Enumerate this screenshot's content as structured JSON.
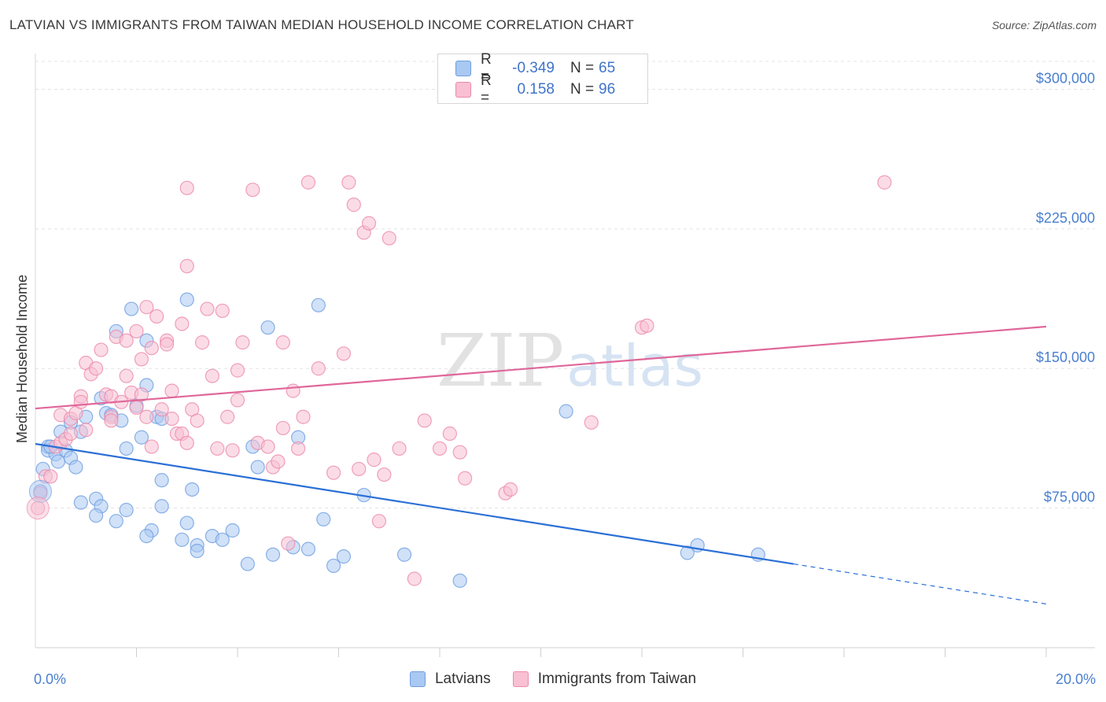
{
  "title": "LATVIAN VS IMMIGRANTS FROM TAIWAN MEDIAN HOUSEHOLD INCOME CORRELATION CHART",
  "source": "Source: ZipAtlas.com",
  "watermark": {
    "zip": "ZIP",
    "atlas": "atlas"
  },
  "legend": {
    "rows": [
      {
        "r_label": "R =",
        "r_value": "-0.349",
        "n_label": "N =",
        "n_value": "65",
        "color": "#a9c8f2",
        "stroke": "#6f9fe0"
      },
      {
        "r_label": "R =",
        "r_value": "0.158",
        "n_label": "N =",
        "n_value": "96",
        "color": "#f8c0d2",
        "stroke": "#ec8aab"
      }
    ]
  },
  "bottom_legend": {
    "items": [
      {
        "label": "Latvians",
        "color": "#a9c8f2",
        "stroke": "#6f9fe0"
      },
      {
        "label": "Immigrants from Taiwan",
        "color": "#f8c0d2",
        "stroke": "#ec8aab"
      }
    ]
  },
  "chart_data": {
    "type": "scatter",
    "title": "LATVIAN VS IMMIGRANTS FROM TAIWAN MEDIAN HOUSEHOLD INCOME CORRELATION CHART",
    "xlabel": "",
    "ylabel": "Median Household Income",
    "xlim": [
      0,
      20
    ],
    "ylim": [
      0,
      315000
    ],
    "x_tick_labels": [
      "0.0%",
      "20.0%"
    ],
    "y_ticks": [
      75000,
      150000,
      225000,
      300000
    ],
    "y_tick_labels": [
      "$75,000",
      "$150,000",
      "$225,000",
      "$300,000"
    ],
    "grid": "horizontal dashed",
    "series": [
      {
        "name": "Latvians",
        "color": "#6f9fe0",
        "fill": "#a9c8f2",
        "line_color": "#2b6fd6",
        "trend": {
          "x0": 0.0,
          "y0": 109500,
          "x1": 15.0,
          "y1": 45000,
          "dashed_to_x": 20.0,
          "dashed_to_y": 23500
        },
        "points": [
          [
            0.25,
            108000
          ],
          [
            0.25,
            106000
          ],
          [
            0.4,
            104000
          ],
          [
            0.45,
            100000
          ],
          [
            0.5,
            116000
          ],
          [
            0.6,
            106000
          ],
          [
            0.7,
            102000
          ],
          [
            0.8,
            97000
          ],
          [
            0.9,
            116000
          ],
          [
            0.7,
            121000
          ],
          [
            1.0,
            124000
          ],
          [
            1.3,
            134000
          ],
          [
            1.4,
            126000
          ],
          [
            1.5,
            125000
          ],
          [
            1.7,
            122000
          ],
          [
            1.6,
            170000
          ],
          [
            1.9,
            182000
          ],
          [
            2.2,
            165000
          ],
          [
            2.0,
            130000
          ],
          [
            2.1,
            113000
          ],
          [
            2.2,
            141000
          ],
          [
            1.8,
            107000
          ],
          [
            2.4,
            124000
          ],
          [
            2.5,
            123000
          ],
          [
            2.5,
            90000
          ],
          [
            3.0,
            187000
          ],
          [
            3.1,
            85000
          ],
          [
            1.2,
            80000
          ],
          [
            0.9,
            78000
          ],
          [
            1.3,
            76000
          ],
          [
            1.2,
            71000
          ],
          [
            1.6,
            68000
          ],
          [
            1.8,
            74000
          ],
          [
            2.3,
            63000
          ],
          [
            2.2,
            60000
          ],
          [
            2.5,
            76000
          ],
          [
            3.0,
            67000
          ],
          [
            2.9,
            58000
          ],
          [
            3.2,
            55000
          ],
          [
            3.2,
            52000
          ],
          [
            3.5,
            60000
          ],
          [
            3.7,
            58000
          ],
          [
            3.9,
            63000
          ],
          [
            4.2,
            45000
          ],
          [
            4.3,
            108000
          ],
          [
            4.4,
            97000
          ],
          [
            4.6,
            172000
          ],
          [
            4.7,
            50000
          ],
          [
            5.1,
            54000
          ],
          [
            5.2,
            113000
          ],
          [
            5.4,
            53000
          ],
          [
            5.6,
            184000
          ],
          [
            5.7,
            69000
          ],
          [
            5.9,
            44000
          ],
          [
            6.1,
            49000
          ],
          [
            6.5,
            82000
          ],
          [
            7.3,
            50000
          ],
          [
            8.4,
            36000
          ],
          [
            10.5,
            127000
          ],
          [
            12.9,
            51000
          ],
          [
            13.1,
            55000
          ],
          [
            14.3,
            50000
          ],
          [
            0.1,
            84000
          ],
          [
            0.15,
            96000
          ],
          [
            0.3,
            108000
          ]
        ]
      },
      {
        "name": "Immigrants from Taiwan",
        "color": "#ec8aab",
        "fill": "#f8c0d2",
        "line_color": "#e0679a",
        "trend": {
          "x0": 0.0,
          "y0": 128500,
          "x1": 20.0,
          "y1": 172500
        },
        "points": [
          [
            0.05,
            75000
          ],
          [
            0.1,
            83000
          ],
          [
            0.2,
            92000
          ],
          [
            0.3,
            92000
          ],
          [
            0.4,
            108000
          ],
          [
            0.5,
            110000
          ],
          [
            0.5,
            125000
          ],
          [
            0.6,
            112000
          ],
          [
            0.7,
            115000
          ],
          [
            0.7,
            123000
          ],
          [
            0.8,
            126000
          ],
          [
            0.9,
            135000
          ],
          [
            0.9,
            132000
          ],
          [
            1.0,
            153000
          ],
          [
            1.0,
            117000
          ],
          [
            1.1,
            147000
          ],
          [
            1.2,
            150000
          ],
          [
            1.3,
            160000
          ],
          [
            1.4,
            136000
          ],
          [
            1.5,
            124000
          ],
          [
            1.5,
            122000
          ],
          [
            1.5,
            135000
          ],
          [
            1.6,
            167000
          ],
          [
            1.7,
            132000
          ],
          [
            1.8,
            165000
          ],
          [
            1.8,
            146000
          ],
          [
            1.9,
            137000
          ],
          [
            2.0,
            170000
          ],
          [
            2.0,
            129000
          ],
          [
            2.1,
            155000
          ],
          [
            2.1,
            136000
          ],
          [
            2.2,
            124000
          ],
          [
            2.2,
            183000
          ],
          [
            2.3,
            161000
          ],
          [
            2.3,
            108000
          ],
          [
            2.4,
            178000
          ],
          [
            2.5,
            128000
          ],
          [
            2.6,
            165000
          ],
          [
            2.6,
            163000
          ],
          [
            2.7,
            138000
          ],
          [
            2.7,
            123000
          ],
          [
            2.8,
            115000
          ],
          [
            2.9,
            174000
          ],
          [
            2.9,
            115000
          ],
          [
            3.0,
            205000
          ],
          [
            3.0,
            110000
          ],
          [
            3.1,
            128000
          ],
          [
            3.2,
            122000
          ],
          [
            3.3,
            164000
          ],
          [
            3.4,
            182000
          ],
          [
            3.5,
            146000
          ],
          [
            3.6,
            107000
          ],
          [
            3.7,
            181000
          ],
          [
            3.8,
            124000
          ],
          [
            3.9,
            106000
          ],
          [
            4.0,
            149000
          ],
          [
            4.0,
            133000
          ],
          [
            4.1,
            164000
          ],
          [
            4.3,
            246000
          ],
          [
            4.4,
            110000
          ],
          [
            4.6,
            108000
          ],
          [
            4.7,
            97000
          ],
          [
            4.8,
            100000
          ],
          [
            4.9,
            164000
          ],
          [
            4.9,
            118000
          ],
          [
            5.0,
            56000
          ],
          [
            5.1,
            138000
          ],
          [
            5.2,
            107000
          ],
          [
            5.3,
            124000
          ],
          [
            5.4,
            250000
          ],
          [
            5.6,
            150000
          ],
          [
            5.9,
            94000
          ],
          [
            6.1,
            158000
          ],
          [
            6.2,
            250000
          ],
          [
            6.3,
            238000
          ],
          [
            6.4,
            96000
          ],
          [
            6.5,
            223000
          ],
          [
            6.6,
            228000
          ],
          [
            6.7,
            101000
          ],
          [
            6.8,
            68000
          ],
          [
            6.9,
            93000
          ],
          [
            7.0,
            220000
          ],
          [
            7.2,
            107000
          ],
          [
            7.5,
            37000
          ],
          [
            7.7,
            122000
          ],
          [
            8.0,
            107000
          ],
          [
            8.2,
            115000
          ],
          [
            8.4,
            105000
          ],
          [
            8.5,
            91000
          ],
          [
            9.3,
            83000
          ],
          [
            9.4,
            85000
          ],
          [
            11.0,
            121000
          ],
          [
            12.0,
            172000
          ],
          [
            12.1,
            173000
          ],
          [
            16.8,
            250000
          ],
          [
            3.0,
            247000
          ]
        ]
      }
    ]
  }
}
